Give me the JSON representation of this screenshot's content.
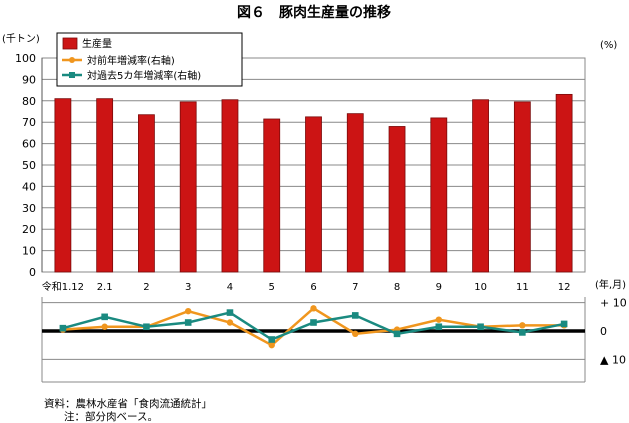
{
  "chart_data": {
    "type": "bar+line",
    "title": "図６　豚肉生産量の推移",
    "left_unit": "(千トン)",
    "right_unit": "(%)",
    "x_unit": "(年,月)",
    "categories": [
      "令和1.12",
      "2.1",
      "2",
      "3",
      "4",
      "5",
      "6",
      "7",
      "8",
      "9",
      "10",
      "11",
      "12"
    ],
    "y_ticks": [
      "100",
      "90",
      "80",
      "70",
      "60",
      "50",
      "40",
      "30",
      "20",
      "10",
      "0"
    ],
    "ylim": [
      0,
      100
    ],
    "bar_series": {
      "name": "生産量",
      "color": "#cc1414",
      "values": [
        81,
        81,
        73.5,
        79.5,
        80.5,
        71.5,
        72.5,
        74,
        68,
        72,
        80.5,
        79.5,
        83
      ]
    },
    "line_series": [
      {
        "name": "対前年増減率(右軸)",
        "color": "#f0961e",
        "marker": "circle",
        "values": [
          0.5,
          1.5,
          1.5,
          7,
          3,
          -5,
          8,
          -1,
          0.5,
          4,
          1.5,
          2,
          2
        ]
      },
      {
        "name": "対過去5カ年増減率(右軸)",
        "color": "#1a8a80",
        "marker": "square",
        "values": [
          1,
          5,
          1.5,
          3,
          6.5,
          -3,
          3,
          5.5,
          -1,
          1.5,
          1.5,
          -0.5,
          2.5
        ]
      }
    ],
    "right_ticks": [
      "+ 10",
      "0",
      "▲ 10"
    ],
    "right_ylim": [
      -18,
      12
    ],
    "legend_position": "top-left",
    "grid": true
  },
  "notes": {
    "source": "資料：農林水産省「食肉流通統計」",
    "note": "注：部分肉ベース。"
  }
}
